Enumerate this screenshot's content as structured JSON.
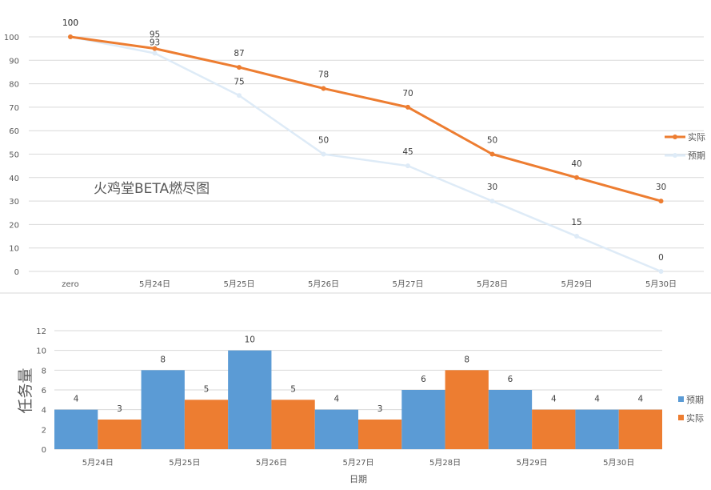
{
  "chart_data": [
    {
      "type": "line",
      "title": "火鸡堂BETA燃尽图",
      "categories": [
        "zero",
        "5月24日",
        "5月25日",
        "5月26日",
        "5月27日",
        "5月28日",
        "5月29日",
        "5月30日"
      ],
      "ylim": [
        0,
        100
      ],
      "yticks": [
        0,
        10,
        20,
        30,
        40,
        50,
        60,
        70,
        80,
        90,
        100
      ],
      "grid": true,
      "legend": "right",
      "series": [
        {
          "name": "实际",
          "color": "#ED7D31",
          "values": [
            100,
            95,
            87,
            78,
            70,
            50,
            40,
            30
          ]
        },
        {
          "name": "预期",
          "color": "#DEEBF7",
          "values": [
            100,
            93,
            75,
            50,
            45,
            30,
            15,
            0
          ]
        }
      ]
    },
    {
      "type": "bar",
      "categories": [
        "5月24日",
        "5月25日",
        "5月26日",
        "5月27日",
        "5月28日",
        "5月29日",
        "5月30日"
      ],
      "xlabel": "日期",
      "ylabel": "任务量",
      "ylim": [
        0,
        12
      ],
      "yticks": [
        0,
        2,
        4,
        6,
        8,
        10,
        12
      ],
      "grid": true,
      "legend": "right",
      "series": [
        {
          "name": "预期",
          "color": "#5B9BD5",
          "values": [
            4,
            8,
            10,
            4,
            6,
            6,
            4
          ]
        },
        {
          "name": "实际",
          "color": "#ED7D31",
          "values": [
            3,
            5,
            5,
            3,
            8,
            4,
            4
          ]
        }
      ]
    }
  ]
}
